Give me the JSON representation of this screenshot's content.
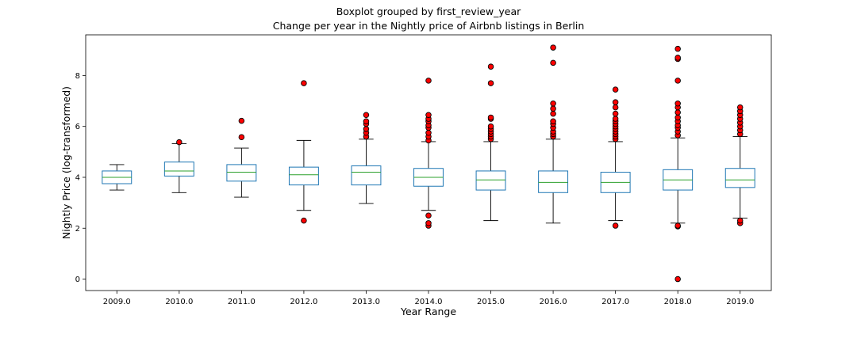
{
  "chart_data": {
    "type": "boxplot",
    "suptitle": "Boxplot grouped by first_review_year",
    "title": "Change per year in the Nightly price of Airbnb listings in Berlin",
    "xlabel": "Year Range",
    "ylabel": "Nightly Price (log-transformed)",
    "ylim": [
      -0.45,
      9.6
    ],
    "yticks": [
      0,
      2,
      4,
      6,
      8
    ],
    "grid": false,
    "colors": {
      "box": "#1f77b4",
      "median": "#2ca02c",
      "whisker": "#000000",
      "flier_fill": "#ff0000",
      "flier_edge": "#000000"
    },
    "groups": [
      {
        "category": "2009.0",
        "whislo": 3.5,
        "q1": 3.75,
        "med": 4.0,
        "q3": 4.25,
        "whishi": 4.5,
        "fliers": []
      },
      {
        "category": "2010.0",
        "whislo": 3.4,
        "q1": 4.05,
        "med": 4.25,
        "q3": 4.6,
        "whishi": 5.32,
        "fliers": [
          5.38
        ]
      },
      {
        "category": "2011.0",
        "whislo": 3.22,
        "q1": 3.85,
        "med": 4.2,
        "q3": 4.5,
        "whishi": 5.15,
        "fliers": [
          5.58,
          6.22
        ]
      },
      {
        "category": "2012.0",
        "whislo": 2.7,
        "q1": 3.7,
        "med": 4.1,
        "q3": 4.4,
        "whishi": 5.45,
        "fliers": [
          2.3,
          7.7
        ]
      },
      {
        "category": "2013.0",
        "whislo": 2.97,
        "q1": 3.7,
        "med": 4.2,
        "q3": 4.45,
        "whishi": 5.5,
        "fliers": [
          5.6,
          5.75,
          5.9,
          6.1,
          6.2,
          6.45
        ]
      },
      {
        "category": "2014.0",
        "whislo": 2.7,
        "q1": 3.65,
        "med": 4.0,
        "q3": 4.35,
        "whishi": 5.4,
        "fliers": [
          2.1,
          2.2,
          2.5,
          5.45,
          5.6,
          5.75,
          5.95,
          6.05,
          6.2,
          6.3,
          6.45,
          7.8
        ]
      },
      {
        "category": "2015.0",
        "whislo": 2.3,
        "q1": 3.5,
        "med": 3.9,
        "q3": 4.25,
        "whishi": 5.4,
        "fliers": [
          5.5,
          5.6,
          5.7,
          5.8,
          5.9,
          6.0,
          6.3,
          6.35,
          7.7,
          8.35
        ]
      },
      {
        "category": "2016.0",
        "whislo": 2.2,
        "q1": 3.4,
        "med": 3.8,
        "q3": 4.25,
        "whishi": 5.5,
        "fliers": [
          5.6,
          5.7,
          5.8,
          5.95,
          6.1,
          6.2,
          6.5,
          6.7,
          6.9,
          8.5,
          9.1
        ]
      },
      {
        "category": "2017.0",
        "whislo": 2.3,
        "q1": 3.4,
        "med": 3.8,
        "q3": 4.2,
        "whishi": 5.4,
        "fliers": [
          2.1,
          5.5,
          5.6,
          5.7,
          5.8,
          5.9,
          6.0,
          6.1,
          6.2,
          6.3,
          6.5,
          6.75,
          6.95,
          7.45
        ]
      },
      {
        "category": "2018.0",
        "whislo": 2.2,
        "q1": 3.5,
        "med": 3.9,
        "q3": 4.3,
        "whishi": 5.55,
        "fliers": [
          0.0,
          2.07,
          2.1,
          5.65,
          5.8,
          5.95,
          6.05,
          6.2,
          6.35,
          6.55,
          6.75,
          6.9,
          7.8,
          8.65,
          8.7,
          9.05
        ]
      },
      {
        "category": "2019.0",
        "whislo": 2.4,
        "q1": 3.6,
        "med": 3.9,
        "q3": 4.35,
        "whishi": 5.6,
        "fliers": [
          2.2,
          2.3,
          5.7,
          5.85,
          6.0,
          6.15,
          6.3,
          6.45,
          6.6,
          6.75
        ]
      }
    ]
  }
}
